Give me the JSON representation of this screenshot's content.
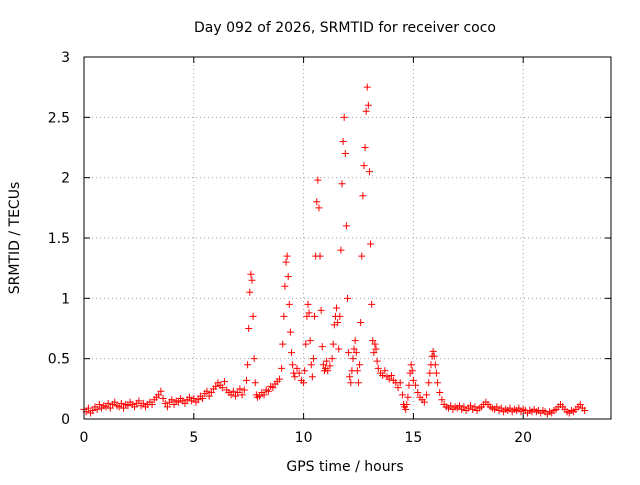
{
  "chart_data": {
    "type": "scatter",
    "title": "Day 092 of 2026, SRMTID for receiver coco",
    "xlabel": "GPS time / hours",
    "ylabel": "SRMTID / TECUs",
    "xlim": [
      0,
      24
    ],
    "ylim": [
      0,
      3
    ],
    "xticks": [
      0,
      5,
      10,
      15,
      20
    ],
    "xtick_labels": [
      "0",
      "5",
      "10",
      "15",
      "20"
    ],
    "yticks": [
      0,
      0.5,
      1,
      1.5,
      2,
      2.5,
      3
    ],
    "ytick_labels": [
      "0",
      "0.5",
      "1",
      "1.5",
      "2",
      "2.5",
      "3"
    ],
    "grid": true,
    "marker": "+",
    "marker_color": "#ff0000",
    "series": [
      {
        "name": "SRMTID",
        "points": [
          [
            0.0,
            0.08
          ],
          [
            0.1,
            0.06
          ],
          [
            0.2,
            0.09
          ],
          [
            0.3,
            0.05
          ],
          [
            0.4,
            0.07
          ],
          [
            0.5,
            0.1
          ],
          [
            0.6,
            0.08
          ],
          [
            0.7,
            0.12
          ],
          [
            0.8,
            0.09
          ],
          [
            0.9,
            0.11
          ],
          [
            1.0,
            0.1
          ],
          [
            1.1,
            0.13
          ],
          [
            1.2,
            0.09
          ],
          [
            1.3,
            0.12
          ],
          [
            1.4,
            0.14
          ],
          [
            1.5,
            0.11
          ],
          [
            1.6,
            0.1
          ],
          [
            1.7,
            0.13
          ],
          [
            1.8,
            0.09
          ],
          [
            1.9,
            0.12
          ],
          [
            2.0,
            0.11
          ],
          [
            2.1,
            0.14
          ],
          [
            2.2,
            0.12
          ],
          [
            2.3,
            0.1
          ],
          [
            2.4,
            0.13
          ],
          [
            2.5,
            0.15
          ],
          [
            2.6,
            0.11
          ],
          [
            2.7,
            0.13
          ],
          [
            2.8,
            0.1
          ],
          [
            2.9,
            0.12
          ],
          [
            3.0,
            0.14
          ],
          [
            3.1,
            0.12
          ],
          [
            3.2,
            0.16
          ],
          [
            3.3,
            0.18
          ],
          [
            3.4,
            0.2
          ],
          [
            3.5,
            0.23
          ],
          [
            3.6,
            0.17
          ],
          [
            3.7,
            0.13
          ],
          [
            3.8,
            0.1
          ],
          [
            3.9,
            0.14
          ],
          [
            4.0,
            0.16
          ],
          [
            4.1,
            0.12
          ],
          [
            4.2,
            0.15
          ],
          [
            4.3,
            0.14
          ],
          [
            4.4,
            0.17
          ],
          [
            4.5,
            0.15
          ],
          [
            4.6,
            0.13
          ],
          [
            4.7,
            0.16
          ],
          [
            4.8,
            0.18
          ],
          [
            4.9,
            0.15
          ],
          [
            5.0,
            0.17
          ],
          [
            5.1,
            0.14
          ],
          [
            5.2,
            0.16
          ],
          [
            5.3,
            0.19
          ],
          [
            5.4,
            0.17
          ],
          [
            5.5,
            0.21
          ],
          [
            5.6,
            0.23
          ],
          [
            5.7,
            0.19
          ],
          [
            5.8,
            0.22
          ],
          [
            5.9,
            0.25
          ],
          [
            6.0,
            0.27
          ],
          [
            6.1,
            0.3
          ],
          [
            6.2,
            0.28
          ],
          [
            6.3,
            0.26
          ],
          [
            6.4,
            0.31
          ],
          [
            6.5,
            0.24
          ],
          [
            6.6,
            0.22
          ],
          [
            6.7,
            0.2
          ],
          [
            6.8,
            0.23
          ],
          [
            6.9,
            0.19
          ],
          [
            7.0,
            0.22
          ],
          [
            7.1,
            0.25
          ],
          [
            7.2,
            0.2
          ],
          [
            7.3,
            0.24
          ],
          [
            7.4,
            0.32
          ],
          [
            7.45,
            0.45
          ],
          [
            7.5,
            0.75
          ],
          [
            7.55,
            1.05
          ],
          [
            7.6,
            1.2
          ],
          [
            7.65,
            1.15
          ],
          [
            7.7,
            0.85
          ],
          [
            7.75,
            0.5
          ],
          [
            7.8,
            0.3
          ],
          [
            7.85,
            0.2
          ],
          [
            7.9,
            0.18
          ],
          [
            8.0,
            0.19
          ],
          [
            8.1,
            0.22
          ],
          [
            8.2,
            0.2
          ],
          [
            8.3,
            0.24
          ],
          [
            8.4,
            0.23
          ],
          [
            8.5,
            0.27
          ],
          [
            8.6,
            0.26
          ],
          [
            8.7,
            0.29
          ],
          [
            8.8,
            0.31
          ],
          [
            8.9,
            0.33
          ],
          [
            9.0,
            0.42
          ],
          [
            9.05,
            0.62
          ],
          [
            9.1,
            0.85
          ],
          [
            9.15,
            1.1
          ],
          [
            9.2,
            1.3
          ],
          [
            9.25,
            1.35
          ],
          [
            9.3,
            1.18
          ],
          [
            9.35,
            0.95
          ],
          [
            9.4,
            0.72
          ],
          [
            9.45,
            0.55
          ],
          [
            9.5,
            0.45
          ],
          [
            9.55,
            0.38
          ],
          [
            9.6,
            0.35
          ],
          [
            9.7,
            0.42
          ],
          [
            9.8,
            0.38
          ],
          [
            9.9,
            0.32
          ],
          [
            10.0,
            0.3
          ],
          [
            10.05,
            0.4
          ],
          [
            10.1,
            0.62
          ],
          [
            10.15,
            0.85
          ],
          [
            10.2,
            0.95
          ],
          [
            10.25,
            0.88
          ],
          [
            10.3,
            0.65
          ],
          [
            10.35,
            0.45
          ],
          [
            10.4,
            0.35
          ],
          [
            10.45,
            0.5
          ],
          [
            10.5,
            0.85
          ],
          [
            10.55,
            1.35
          ],
          [
            10.6,
            1.8
          ],
          [
            10.65,
            1.98
          ],
          [
            10.7,
            1.75
          ],
          [
            10.75,
            1.35
          ],
          [
            10.8,
            0.9
          ],
          [
            10.85,
            0.6
          ],
          [
            10.9,
            0.45
          ],
          [
            10.95,
            0.4
          ],
          [
            11.0,
            0.42
          ],
          [
            11.05,
            0.48
          ],
          [
            11.1,
            0.4
          ],
          [
            11.2,
            0.44
          ],
          [
            11.3,
            0.5
          ],
          [
            11.35,
            0.62
          ],
          [
            11.4,
            0.78
          ],
          [
            11.45,
            0.85
          ],
          [
            11.5,
            0.92
          ],
          [
            11.55,
            0.8
          ],
          [
            11.6,
            0.58
          ],
          [
            11.65,
            0.85
          ],
          [
            11.7,
            1.4
          ],
          [
            11.75,
            1.95
          ],
          [
            11.8,
            2.3
          ],
          [
            11.85,
            2.5
          ],
          [
            11.9,
            2.2
          ],
          [
            11.95,
            1.6
          ],
          [
            12.0,
            1.0
          ],
          [
            12.05,
            0.55
          ],
          [
            12.1,
            0.35
          ],
          [
            12.15,
            0.3
          ],
          [
            12.2,
            0.4
          ],
          [
            12.25,
            0.5
          ],
          [
            12.3,
            0.58
          ],
          [
            12.35,
            0.65
          ],
          [
            12.4,
            0.55
          ],
          [
            12.45,
            0.4
          ],
          [
            12.5,
            0.3
          ],
          [
            12.55,
            0.45
          ],
          [
            12.6,
            0.8
          ],
          [
            12.65,
            1.35
          ],
          [
            12.7,
            1.85
          ],
          [
            12.75,
            2.1
          ],
          [
            12.8,
            2.25
          ],
          [
            12.85,
            2.55
          ],
          [
            12.9,
            2.75
          ],
          [
            12.95,
            2.6
          ],
          [
            13.0,
            2.05
          ],
          [
            13.05,
            1.45
          ],
          [
            13.1,
            0.95
          ],
          [
            13.15,
            0.65
          ],
          [
            13.2,
            0.55
          ],
          [
            13.25,
            0.62
          ],
          [
            13.3,
            0.58
          ],
          [
            13.35,
            0.48
          ],
          [
            13.4,
            0.42
          ],
          [
            13.5,
            0.38
          ],
          [
            13.6,
            0.36
          ],
          [
            13.7,
            0.4
          ],
          [
            13.8,
            0.35
          ],
          [
            13.9,
            0.33
          ],
          [
            14.0,
            0.36
          ],
          [
            14.1,
            0.32
          ],
          [
            14.2,
            0.3
          ],
          [
            14.3,
            0.26
          ],
          [
            14.4,
            0.3
          ],
          [
            14.5,
            0.2
          ],
          [
            14.55,
            0.12
          ],
          [
            14.6,
            0.1
          ],
          [
            14.65,
            0.08
          ],
          [
            14.7,
            0.12
          ],
          [
            14.75,
            0.18
          ],
          [
            14.8,
            0.28
          ],
          [
            14.85,
            0.38
          ],
          [
            14.9,
            0.45
          ],
          [
            14.95,
            0.4
          ],
          [
            15.0,
            0.32
          ],
          [
            15.1,
            0.28
          ],
          [
            15.2,
            0.22
          ],
          [
            15.3,
            0.18
          ],
          [
            15.4,
            0.16
          ],
          [
            15.5,
            0.14
          ],
          [
            15.6,
            0.2
          ],
          [
            15.7,
            0.3
          ],
          [
            15.75,
            0.38
          ],
          [
            15.8,
            0.45
          ],
          [
            15.85,
            0.52
          ],
          [
            15.9,
            0.56
          ],
          [
            15.95,
            0.52
          ],
          [
            16.0,
            0.45
          ],
          [
            16.05,
            0.38
          ],
          [
            16.1,
            0.3
          ],
          [
            16.2,
            0.22
          ],
          [
            16.3,
            0.16
          ],
          [
            16.4,
            0.12
          ],
          [
            16.5,
            0.1
          ],
          [
            16.6,
            0.09
          ],
          [
            16.7,
            0.11
          ],
          [
            16.8,
            0.08
          ],
          [
            16.9,
            0.1
          ],
          [
            17.0,
            0.09
          ],
          [
            17.1,
            0.11
          ],
          [
            17.2,
            0.08
          ],
          [
            17.3,
            0.1
          ],
          [
            17.4,
            0.07
          ],
          [
            17.5,
            0.09
          ],
          [
            17.6,
            0.11
          ],
          [
            17.7,
            0.08
          ],
          [
            17.8,
            0.1
          ],
          [
            17.9,
            0.07
          ],
          [
            18.0,
            0.09
          ],
          [
            18.1,
            0.1
          ],
          [
            18.2,
            0.12
          ],
          [
            18.3,
            0.14
          ],
          [
            18.4,
            0.12
          ],
          [
            18.5,
            0.1
          ],
          [
            18.6,
            0.09
          ],
          [
            18.7,
            0.08
          ],
          [
            18.8,
            0.1
          ],
          [
            18.9,
            0.07
          ],
          [
            19.0,
            0.09
          ],
          [
            19.1,
            0.06
          ],
          [
            19.2,
            0.08
          ],
          [
            19.3,
            0.07
          ],
          [
            19.4,
            0.09
          ],
          [
            19.5,
            0.06
          ],
          [
            19.6,
            0.08
          ],
          [
            19.7,
            0.07
          ],
          [
            19.8,
            0.09
          ],
          [
            19.9,
            0.06
          ],
          [
            20.0,
            0.08
          ],
          [
            20.1,
            0.07
          ],
          [
            20.2,
            0.05
          ],
          [
            20.3,
            0.07
          ],
          [
            20.4,
            0.06
          ],
          [
            20.5,
            0.08
          ],
          [
            20.6,
            0.06
          ],
          [
            20.7,
            0.07
          ],
          [
            20.8,
            0.05
          ],
          [
            20.9,
            0.07
          ],
          [
            21.0,
            0.06
          ],
          [
            21.1,
            0.04
          ],
          [
            21.2,
            0.06
          ],
          [
            21.3,
            0.05
          ],
          [
            21.4,
            0.07
          ],
          [
            21.5,
            0.08
          ],
          [
            21.6,
            0.1
          ],
          [
            21.7,
            0.12
          ],
          [
            21.8,
            0.1
          ],
          [
            21.9,
            0.08
          ],
          [
            22.0,
            0.06
          ],
          [
            22.1,
            0.05
          ],
          [
            22.2,
            0.07
          ],
          [
            22.3,
            0.06
          ],
          [
            22.4,
            0.08
          ],
          [
            22.5,
            0.1
          ],
          [
            22.6,
            0.12
          ],
          [
            22.7,
            0.09
          ],
          [
            22.8,
            0.07
          ]
        ]
      }
    ]
  }
}
